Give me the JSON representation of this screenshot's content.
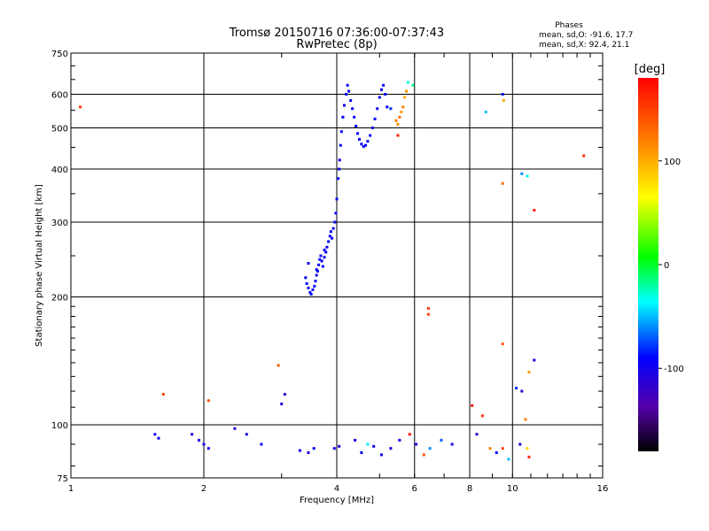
{
  "chart_data": {
    "type": "scatter",
    "title": "Tromsø 20150716 07:36:00-07:37:43",
    "subtitle": "RwPretec (8p)",
    "xlabel": "Frequency [MHz]",
    "ylabel": "Stationary phase Virtual Height [km]",
    "x_scale": "log",
    "y_scale": "log",
    "xlim": [
      1,
      16
    ],
    "ylim": [
      75,
      750
    ],
    "x_ticks": [
      1,
      2,
      4,
      6,
      8,
      10,
      16
    ],
    "y_ticks": [
      75,
      100,
      200,
      300,
      400,
      500,
      600,
      750
    ],
    "grid": true,
    "phase_info": {
      "title": "Phases",
      "line_o": "mean, sd,O: -91.6, 17.7",
      "line_x": "mean, sd,X:  92.4, 21.1"
    },
    "colorbar": {
      "label": "[deg]",
      "range": [
        -180,
        180
      ],
      "ticks": [
        100,
        0,
        -100
      ]
    },
    "series": [
      {
        "points": [
          [
            3.4,
            222,
            -95
          ],
          [
            3.42,
            215,
            -90
          ],
          [
            3.45,
            210,
            -100
          ],
          [
            3.48,
            205,
            -95
          ],
          [
            3.5,
            203,
            -92
          ],
          [
            3.53,
            208,
            -98
          ],
          [
            3.56,
            212,
            -88
          ],
          [
            3.58,
            218,
            -94
          ],
          [
            3.6,
            225,
            -100
          ],
          [
            3.62,
            230,
            -90
          ],
          [
            3.64,
            238,
            -96
          ],
          [
            3.66,
            245,
            -92
          ],
          [
            3.68,
            250,
            -100
          ],
          [
            3.7,
            243,
            -95
          ],
          [
            3.72,
            236,
            -90
          ],
          [
            3.75,
            248,
            -97
          ],
          [
            3.78,
            255,
            -93
          ],
          [
            3.8,
            262,
            -99
          ],
          [
            3.83,
            270,
            -91
          ],
          [
            3.86,
            278,
            -95
          ],
          [
            3.88,
            285,
            -92
          ],
          [
            3.9,
            275,
            -98
          ],
          [
            3.93,
            290,
            -94
          ],
          [
            3.96,
            300,
            -96
          ],
          [
            3.98,
            315,
            -90
          ],
          [
            4.0,
            340,
            -95
          ],
          [
            4.03,
            380,
            -92
          ],
          [
            4.06,
            420,
            -98
          ],
          [
            4.08,
            455,
            -93
          ],
          [
            4.1,
            490,
            -96
          ],
          [
            4.13,
            530,
            -91
          ],
          [
            4.16,
            565,
            -99
          ],
          [
            4.2,
            600,
            -94
          ],
          [
            4.23,
            630,
            -95
          ],
          [
            4.26,
            610,
            -92
          ],
          [
            4.3,
            580,
            -97
          ],
          [
            4.34,
            555,
            -93
          ],
          [
            4.38,
            530,
            -90
          ],
          [
            4.42,
            505,
            -96
          ],
          [
            4.46,
            485,
            -94
          ],
          [
            4.5,
            470,
            -98
          ],
          [
            4.55,
            458,
            -92
          ],
          [
            4.6,
            452,
            -95
          ],
          [
            4.65,
            455,
            -91
          ],
          [
            4.7,
            465,
            -97
          ],
          [
            4.76,
            480,
            -93
          ],
          [
            4.82,
            500,
            -95
          ],
          [
            4.88,
            525,
            -92
          ],
          [
            4.94,
            555,
            -98
          ],
          [
            5.0,
            590,
            -94
          ],
          [
            5.05,
            615,
            -96
          ],
          [
            5.1,
            630,
            -90
          ],
          [
            5.15,
            600,
            -95
          ],
          [
            5.2,
            560,
            -92
          ],
          [
            5.3,
            555,
            -80
          ],
          [
            5.45,
            520,
            120
          ],
          [
            5.5,
            510,
            115
          ],
          [
            5.55,
            530,
            125
          ],
          [
            5.6,
            545,
            110
          ],
          [
            5.65,
            560,
            118
          ],
          [
            5.7,
            590,
            105
          ],
          [
            5.75,
            610,
            112
          ],
          [
            5.8,
            640,
            -30
          ],
          [
            3.45,
            240,
            -100
          ],
          [
            3.6,
            232,
            -95
          ],
          [
            3.75,
            258,
            -92
          ],
          [
            4.05,
            400,
            -95
          ],
          [
            1.05,
            560,
            150
          ],
          [
            1.62,
            118,
            145
          ],
          [
            2.05,
            114,
            140
          ],
          [
            2.95,
            138,
            135
          ],
          [
            3.0,
            112,
            -105
          ],
          [
            3.05,
            118,
            -110
          ],
          [
            1.55,
            95,
            -100
          ],
          [
            1.58,
            93,
            -95
          ],
          [
            1.88,
            95,
            -110
          ],
          [
            1.95,
            92,
            -105
          ],
          [
            2.0,
            90,
            -100
          ],
          [
            2.05,
            88,
            -95
          ],
          [
            2.35,
            98,
            -110
          ],
          [
            2.5,
            95,
            -100
          ],
          [
            2.7,
            90,
            -95
          ],
          [
            3.3,
            87,
            -100
          ],
          [
            3.45,
            86,
            -105
          ],
          [
            3.55,
            88,
            -95
          ],
          [
            3.95,
            88,
            -100
          ],
          [
            4.05,
            89,
            -110
          ],
          [
            4.4,
            92,
            -100
          ],
          [
            4.55,
            86,
            -95
          ],
          [
            4.7,
            90,
            -40
          ],
          [
            4.85,
            89,
            -105
          ],
          [
            5.05,
            85,
            -100
          ],
          [
            5.3,
            88,
            -110
          ],
          [
            5.55,
            92,
            -100
          ],
          [
            5.85,
            95,
            170
          ],
          [
            6.05,
            90,
            -100
          ],
          [
            6.3,
            85,
            140
          ],
          [
            6.5,
            88,
            -60
          ],
          [
            6.9,
            92,
            -70
          ],
          [
            7.3,
            90,
            -100
          ],
          [
            8.1,
            111,
            170
          ],
          [
            8.3,
            95,
            -110
          ],
          [
            8.55,
            105,
            160
          ],
          [
            8.9,
            88,
            120
          ],
          [
            9.2,
            86,
            -90
          ],
          [
            9.5,
            88,
            150
          ],
          [
            9.8,
            83,
            -50
          ],
          [
            10.4,
            90,
            -110
          ],
          [
            10.8,
            88,
            80
          ],
          [
            10.9,
            84,
            160
          ],
          [
            6.45,
            188,
            155
          ],
          [
            6.45,
            182,
            150
          ],
          [
            9.5,
            155,
            140
          ],
          [
            9.5,
            370,
            130
          ],
          [
            9.5,
            600,
            -100
          ],
          [
            9.55,
            580,
            100
          ],
          [
            8.7,
            545,
            -50
          ],
          [
            10.5,
            390,
            -60
          ],
          [
            10.8,
            385,
            -40
          ],
          [
            11.2,
            320,
            165
          ],
          [
            14.5,
            430,
            160
          ],
          [
            10.2,
            122,
            -80
          ],
          [
            10.5,
            120,
            -110
          ],
          [
            11.2,
            142,
            -100
          ],
          [
            10.9,
            133,
            110
          ],
          [
            10.7,
            103,
            120
          ],
          [
            5.95,
            630,
            -20
          ],
          [
            5.5,
            480,
            165
          ]
        ]
      }
    ]
  }
}
